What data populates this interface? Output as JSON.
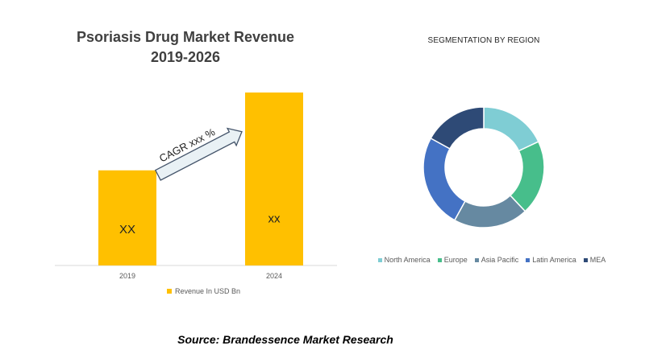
{
  "chart_data": [
    {
      "type": "bar",
      "title": "Psoriasis Drug Market Revenue",
      "subtitle": "2019-2026",
      "categories": [
        "2019",
        "2024"
      ],
      "series": [
        {
          "name": "Revenue In USD Bn",
          "values": [
            55,
            100
          ],
          "value_labels": [
            "XX",
            "xx"
          ]
        }
      ],
      "ylim": [
        0,
        100
      ],
      "grid": false,
      "legend_position": "bottom",
      "annotation": "CAGR xxx  %",
      "colors": {
        "bar": "#FFC000",
        "arrow_fill": "#E9F1F5",
        "arrow_stroke": "#44546A",
        "axis": "#D9D9D9"
      }
    },
    {
      "type": "pie",
      "title": "SEGMENTATION BY REGION",
      "donut": true,
      "categories": [
        "North America",
        "Europe",
        "Asia Pacific",
        "Latin America",
        "MEA"
      ],
      "values": [
        18,
        20,
        20,
        25,
        17
      ],
      "colors": [
        "#7FCDD4",
        "#47BE8B",
        "#6689A1",
        "#4472C4",
        "#2E4A76"
      ],
      "legend_position": "bottom"
    }
  ],
  "source": "Source: Brandessence Market Research"
}
